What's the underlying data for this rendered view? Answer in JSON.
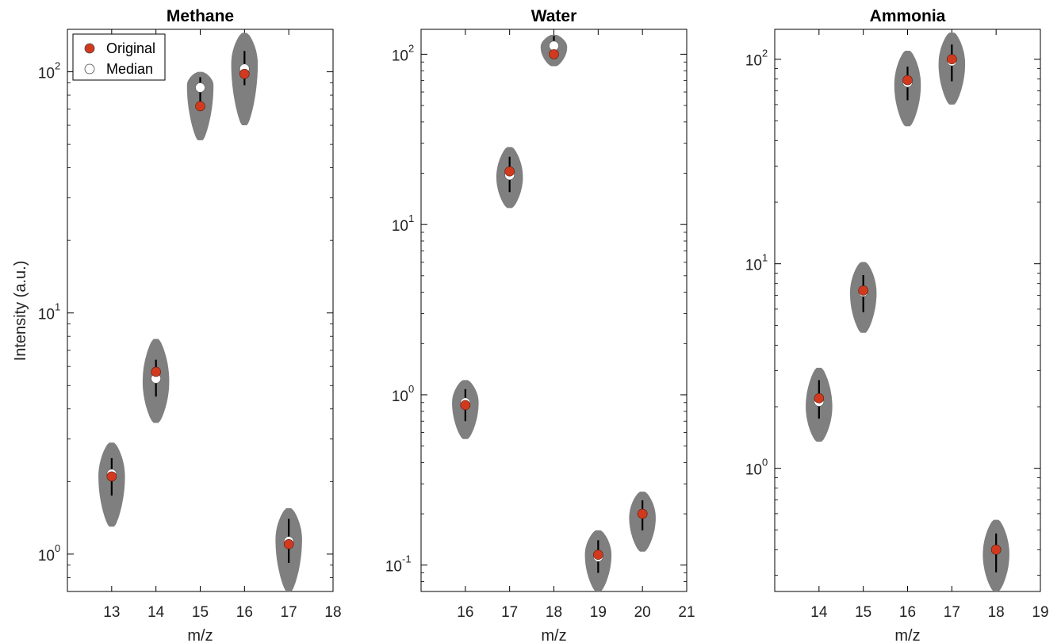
{
  "colors": {
    "violin": "#7f7f7f",
    "original": "#d13a1e",
    "median": "#ffffff",
    "whisker": "#000000"
  },
  "legend": {
    "items": [
      {
        "label": "Original",
        "marker": "original"
      },
      {
        "label": "Median",
        "marker": "median"
      }
    ],
    "placement": "top-left of first panel"
  },
  "chart_data": [
    {
      "type": "violin",
      "title": "Methane",
      "xlabel": "m/z",
      "ylabel": "Intensity (a.u.)",
      "yscale": "log",
      "xlim": [
        12,
        18
      ],
      "ylim": [
        0.7,
        150
      ],
      "xticks": [
        13,
        14,
        15,
        16,
        17,
        18
      ],
      "yticks": [
        {
          "value": 1,
          "base": "10",
          "exp": "0"
        },
        {
          "value": 10,
          "base": "10",
          "exp": "1"
        },
        {
          "value": 100,
          "base": "10",
          "exp": "2"
        }
      ],
      "violins": [
        {
          "x": 13,
          "min": 1.3,
          "max": 2.9,
          "widest": 2.1,
          "original": 2.1,
          "median": 2.15,
          "whisker": [
            1.75,
            2.5
          ]
        },
        {
          "x": 14,
          "min": 3.5,
          "max": 7.8,
          "widest": 5.2,
          "original": 5.7,
          "median": 5.35,
          "whisker": [
            4.5,
            6.4
          ]
        },
        {
          "x": 15,
          "min": 52,
          "max": 100,
          "widest": 88,
          "original": 72,
          "median": 86,
          "whisker": [
            72,
            95
          ]
        },
        {
          "x": 16,
          "min": 60,
          "max": 145,
          "widest": 108,
          "original": 98,
          "median": 103,
          "whisker": [
            88,
            122
          ]
        },
        {
          "x": 17,
          "min": 0.7,
          "max": 1.55,
          "widest": 1.15,
          "original": 1.1,
          "median": 1.13,
          "whisker": [
            0.92,
            1.4
          ]
        }
      ]
    },
    {
      "type": "violin",
      "title": "Water",
      "xlabel": "m/z",
      "ylabel": "",
      "yscale": "log",
      "xlim": [
        15,
        21
      ],
      "ylim": [
        0.07,
        140
      ],
      "xticks": [
        16,
        17,
        18,
        19,
        20,
        21
      ],
      "yticks": [
        {
          "value": 0.1,
          "base": "10",
          "exp": "-1"
        },
        {
          "value": 1,
          "base": "10",
          "exp": "0"
        },
        {
          "value": 10,
          "base": "10",
          "exp": "1"
        },
        {
          "value": 100,
          "base": "10",
          "exp": "2"
        }
      ],
      "violins": [
        {
          "x": 16,
          "min": 0.55,
          "max": 1.22,
          "widest": 0.9,
          "original": 0.87,
          "median": 0.9,
          "whisker": [
            0.7,
            1.08
          ]
        },
        {
          "x": 17,
          "min": 12.5,
          "max": 28.5,
          "widest": 19,
          "original": 20.5,
          "median": 19.5,
          "whisker": [
            15.5,
            25
          ]
        },
        {
          "x": 18,
          "min": 85,
          "max": 130,
          "widest": 110,
          "original": 100,
          "median": 112,
          "whisker": [
            100,
            128
          ]
        },
        {
          "x": 19,
          "min": 0.07,
          "max": 0.16,
          "widest": 0.115,
          "original": 0.115,
          "median": 0.112,
          "whisker": [
            0.09,
            0.14
          ]
        },
        {
          "x": 20,
          "min": 0.12,
          "max": 0.27,
          "widest": 0.19,
          "original": 0.2,
          "median": 0.2,
          "whisker": [
            0.16,
            0.24
          ]
        }
      ]
    },
    {
      "type": "violin",
      "title": "Ammonia",
      "xlabel": "m/z",
      "ylabel": "",
      "yscale": "log",
      "xlim": [
        13,
        19
      ],
      "ylim": [
        0.25,
        140
      ],
      "xticks": [
        14,
        15,
        16,
        17,
        18,
        19
      ],
      "yticks": [
        {
          "value": 1,
          "base": "10",
          "exp": "0"
        },
        {
          "value": 10,
          "base": "10",
          "exp": "1"
        },
        {
          "value": 100,
          "base": "10",
          "exp": "2"
        }
      ],
      "violins": [
        {
          "x": 14,
          "min": 1.35,
          "max": 3.1,
          "widest": 2.0,
          "original": 2.2,
          "median": 2.12,
          "whisker": [
            1.75,
            2.7
          ]
        },
        {
          "x": 15,
          "min": 4.6,
          "max": 10.2,
          "widest": 7.2,
          "original": 7.4,
          "median": 7.3,
          "whisker": [
            5.8,
            8.8
          ]
        },
        {
          "x": 16,
          "min": 47,
          "max": 110,
          "widest": 75,
          "original": 79,
          "median": 77,
          "whisker": [
            63,
            92
          ]
        },
        {
          "x": 17,
          "min": 60,
          "max": 135,
          "widest": 95,
          "original": 100,
          "median": 98,
          "whisker": [
            78,
            118
          ]
        },
        {
          "x": 18,
          "min": 0.25,
          "max": 0.56,
          "widest": 0.38,
          "original": 0.4,
          "median": 0.4,
          "whisker": [
            0.31,
            0.48
          ]
        }
      ]
    }
  ]
}
